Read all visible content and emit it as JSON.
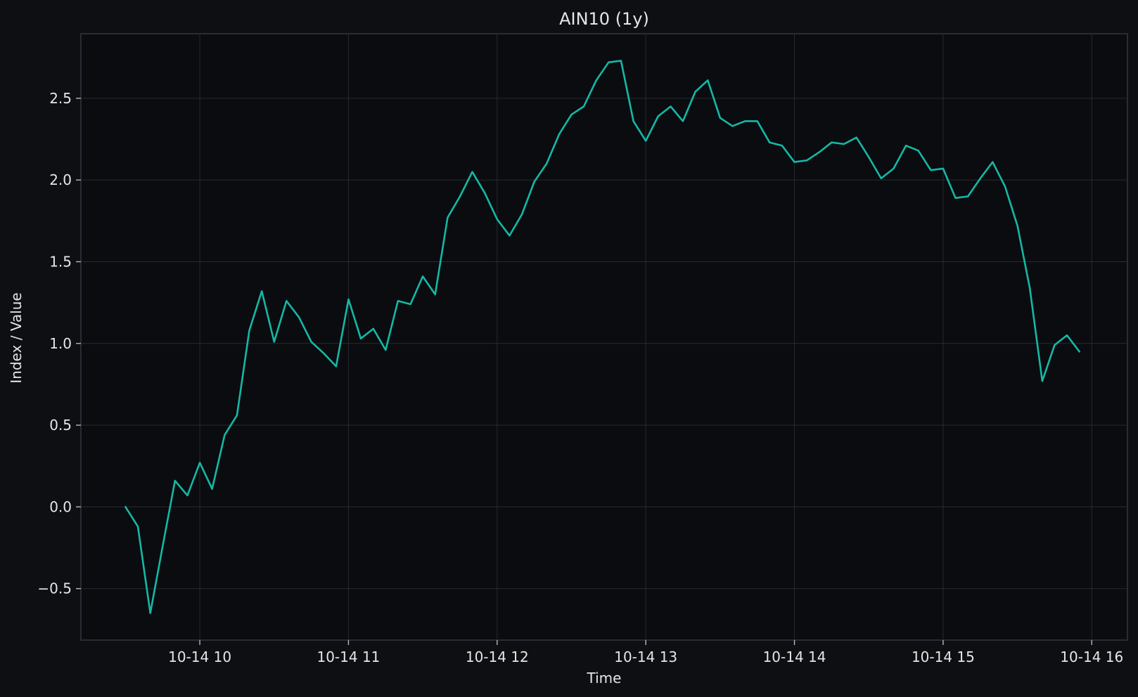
{
  "chart_data": {
    "type": "line",
    "title": "AIN10 (1y)",
    "xlabel": "Time",
    "ylabel": "Index / Value",
    "x_tick_labels": [
      "10-14 10",
      "10-14 11",
      "10-14 12",
      "10-14 13",
      "10-14 14",
      "10-14 15",
      "10-14 16"
    ],
    "x_tick_hours": [
      10,
      11,
      12,
      13,
      14,
      15,
      16
    ],
    "xlim_hours": [
      9.2,
      16.24
    ],
    "y_tick_labels": [
      "−0.5",
      "0.0",
      "0.5",
      "1.0",
      "1.5",
      "2.0",
      "2.5"
    ],
    "y_ticks": [
      -0.5,
      0.0,
      0.5,
      1.0,
      1.5,
      2.0,
      2.5
    ],
    "ylim": [
      -0.815,
      2.895
    ],
    "grid": true,
    "colors": {
      "line": "#14b8a6",
      "background": "#0d0f13",
      "plot_background": "#0a0c0f"
    },
    "series": [
      {
        "time_hours": [
          9.5,
          9.583,
          9.667,
          9.75,
          9.833,
          9.917,
          10.0,
          10.083,
          10.167,
          10.25,
          10.333,
          10.417,
          10.5,
          10.583,
          10.667,
          10.75,
          10.833,
          10.917,
          11.0,
          11.083,
          11.167,
          11.25,
          11.333,
          11.417,
          11.5,
          11.583,
          11.667,
          11.75,
          11.833,
          11.917,
          12.0,
          12.083,
          12.167,
          12.25,
          12.333,
          12.417,
          12.5,
          12.583,
          12.667,
          12.75,
          12.833,
          12.917,
          13.0,
          13.083,
          13.167,
          13.25,
          13.333,
          13.417,
          13.5,
          13.583,
          13.667,
          13.75,
          13.833,
          13.917,
          14.0,
          14.083,
          14.167,
          14.25,
          14.333,
          14.417,
          14.5,
          14.583,
          14.667,
          14.75,
          14.833,
          14.917,
          15.0,
          15.083,
          15.167,
          15.25,
          15.333,
          15.417,
          15.5,
          15.583,
          15.667,
          15.75,
          15.833,
          15.917
        ],
        "values": [
          0.0,
          -0.12,
          -0.65,
          -0.24,
          0.16,
          0.07,
          0.27,
          0.11,
          0.44,
          0.56,
          1.08,
          1.32,
          1.01,
          1.26,
          1.16,
          1.01,
          0.94,
          0.86,
          1.27,
          1.03,
          1.09,
          0.96,
          1.26,
          1.24,
          1.41,
          1.3,
          1.77,
          1.9,
          2.05,
          1.92,
          1.76,
          1.66,
          1.79,
          1.99,
          2.1,
          2.28,
          2.4,
          2.45,
          2.61,
          2.72,
          2.73,
          2.36,
          2.24,
          2.39,
          2.45,
          2.36,
          2.54,
          2.61,
          2.38,
          2.33,
          2.36,
          2.36,
          2.23,
          2.21,
          2.11,
          2.12,
          2.17,
          2.23,
          2.22,
          2.26,
          2.14,
          2.01,
          2.07,
          2.21,
          2.18,
          2.06,
          2.07,
          1.89,
          1.9,
          2.01,
          2.11,
          1.96,
          1.72,
          1.34,
          0.77,
          0.99,
          1.05,
          0.95
        ]
      }
    ]
  }
}
